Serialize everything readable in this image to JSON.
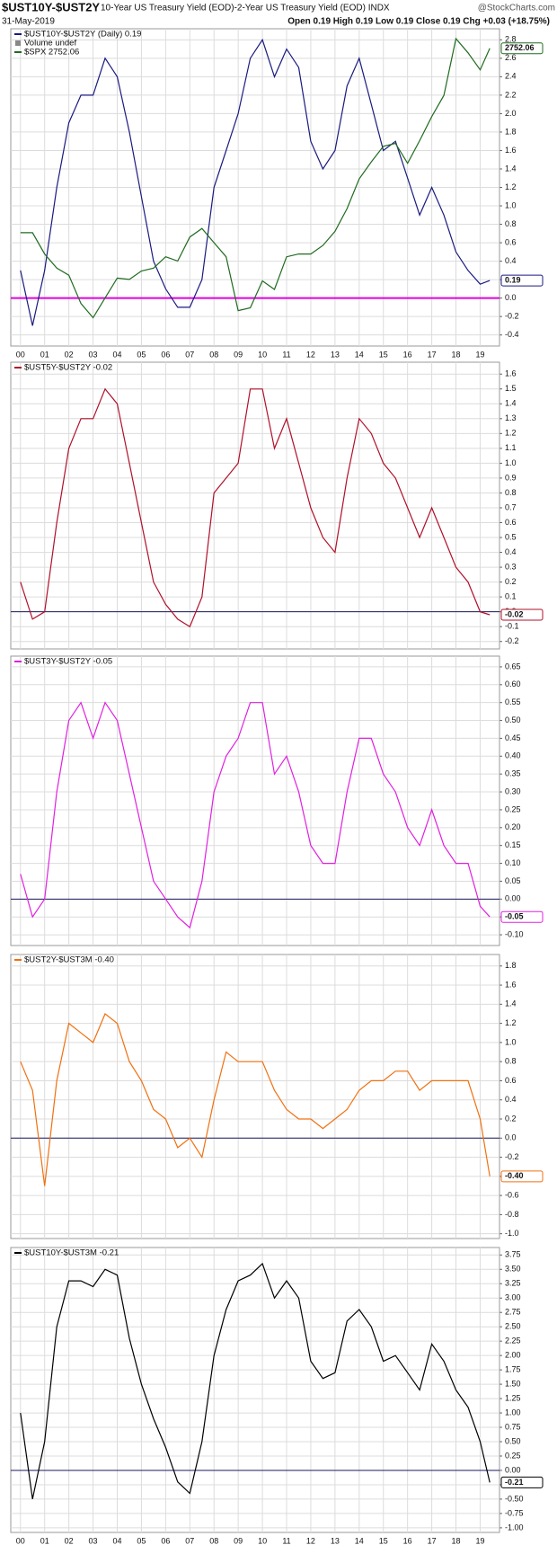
{
  "header": {
    "title": "$UST10Y-$UST2Y",
    "subtitle": "10-Year US Treasury Yield (EOD)-2-Year US Treasury Yield (EOD) INDX",
    "source": "@StockCharts.com",
    "date": "31-May-2019",
    "quote": "Open 0.19 High 0.19 Low 0.19 Close 0.19 Chg +0.03 (+18.75%)"
  },
  "chart_data": [
    {
      "type": "line",
      "legend_extra": "Volume undef",
      "reference_line": 0,
      "reference_color": "#e000e0",
      "x": [
        2000,
        2000.5,
        2001,
        2001.5,
        2002,
        2002.5,
        2003,
        2003.5,
        2004,
        2004.5,
        2005,
        2005.5,
        2006,
        2006.5,
        2007,
        2007.5,
        2008,
        2008.5,
        2009,
        2009.5,
        2010,
        2010.5,
        2011,
        2011.5,
        2012,
        2012.5,
        2013,
        2013.5,
        2014,
        2014.5,
        2015,
        2015.5,
        2016,
        2016.5,
        2017,
        2017.5,
        2018,
        2018.5,
        2019,
        2019.4
      ],
      "xlim": [
        1999.6,
        2019.8
      ],
      "xticks": [
        {
          "value": 2000,
          "label": "00"
        },
        {
          "value": 2001,
          "label": "01"
        },
        {
          "value": 2002,
          "label": "02"
        },
        {
          "value": 2003,
          "label": "03"
        },
        {
          "value": 2004,
          "label": "04"
        },
        {
          "value": 2005,
          "label": "05"
        },
        {
          "value": 2006,
          "label": "06"
        },
        {
          "value": 2007,
          "label": "07"
        },
        {
          "value": 2008,
          "label": "08"
        },
        {
          "value": 2009,
          "label": "09"
        },
        {
          "value": 2010,
          "label": "10"
        },
        {
          "value": 2011,
          "label": "11"
        },
        {
          "value": 2012,
          "label": "12"
        },
        {
          "value": 2013,
          "label": "13"
        },
        {
          "value": 2014,
          "label": "14"
        },
        {
          "value": 2015,
          "label": "15"
        },
        {
          "value": 2016,
          "label": "16"
        },
        {
          "value": 2017,
          "label": "17"
        },
        {
          "value": 2018,
          "label": "18"
        },
        {
          "value": 2019,
          "label": "19"
        }
      ],
      "ylim": [
        -0.52,
        2.92
      ],
      "yticks": [
        -0.4,
        -0.2,
        {
          "value": 0,
          "label": "0.0"
        },
        0.2,
        0.4,
        0.6,
        0.8,
        {
          "value": 1,
          "label": "1.0"
        },
        1.2,
        1.4,
        1.6,
        1.8,
        {
          "value": 2,
          "label": "2.0"
        },
        2.2,
        2.4,
        2.6,
        2.8
      ],
      "y2lim": [
        650,
        2890
      ],
      "series": [
        {
          "name": "$UST10Y-$UST2Y (Daily) 0.19",
          "color": "#1a1a80",
          "values": [
            0.3,
            -0.3,
            0.3,
            1.2,
            1.9,
            2.2,
            2.2,
            2.6,
            2.4,
            1.8,
            1.1,
            0.4,
            0.1,
            -0.1,
            -0.1,
            0.2,
            1.2,
            1.6,
            2.0,
            2.6,
            2.8,
            2.4,
            2.7,
            2.5,
            1.7,
            1.4,
            1.6,
            2.3,
            2.6,
            2.1,
            1.6,
            1.7,
            1.3,
            0.9,
            1.2,
            0.9,
            0.5,
            0.3,
            0.15,
            0.19
          ]
        },
        {
          "name": "$SPX 2752.06",
          "color": "#1f6b1f",
          "axis": "y2",
          "values": [
            1450,
            1450,
            1300,
            1200,
            1150,
            950,
            850,
            990,
            1130,
            1120,
            1180,
            1200,
            1280,
            1250,
            1420,
            1480,
            1380,
            1280,
            900,
            920,
            1110,
            1050,
            1280,
            1300,
            1300,
            1360,
            1460,
            1620,
            1830,
            1950,
            2060,
            2080,
            1940,
            2100,
            2270,
            2420,
            2820,
            2720,
            2600,
            2752.06
          ]
        }
      ]
    },
    {
      "type": "line",
      "reference_line": 0,
      "reference_color": "#1a1a60",
      "x": [
        2000,
        2000.5,
        2001,
        2001.5,
        2002,
        2002.5,
        2003,
        2003.5,
        2004,
        2004.5,
        2005,
        2005.5,
        2006,
        2006.5,
        2007,
        2007.5,
        2008,
        2008.5,
        2009,
        2009.5,
        2010,
        2010.5,
        2011,
        2011.5,
        2012,
        2012.5,
        2013,
        2013.5,
        2014,
        2014.5,
        2015,
        2015.5,
        2016,
        2016.5,
        2017,
        2017.5,
        2018,
        2018.5,
        2019,
        2019.4
      ],
      "xlim": [
        1999.6,
        2019.8
      ],
      "ylim": [
        -0.25,
        1.68
      ],
      "yticks": [
        -0.2,
        -0.1,
        {
          "value": 0,
          "label": "0.0"
        },
        0.1,
        0.2,
        0.3,
        0.4,
        0.5,
        0.6,
        0.7,
        0.8,
        0.9,
        {
          "value": 1,
          "label": "1.0"
        },
        1.1,
        1.2,
        1.3,
        1.4,
        1.5,
        1.6
      ],
      "series": [
        {
          "name": "$UST5Y-$UST2Y -0.02",
          "color": "#b0102a",
          "values": [
            0.2,
            -0.05,
            0.0,
            0.6,
            1.1,
            1.3,
            1.3,
            1.5,
            1.4,
            1.0,
            0.6,
            0.2,
            0.05,
            -0.05,
            -0.1,
            0.1,
            0.8,
            0.9,
            1.0,
            1.5,
            1.5,
            1.1,
            1.3,
            1.0,
            0.7,
            0.5,
            0.4,
            0.9,
            1.3,
            1.2,
            1.0,
            0.9,
            0.7,
            0.5,
            0.7,
            0.5,
            0.3,
            0.2,
            0.0,
            -0.02
          ]
        }
      ]
    },
    {
      "type": "line",
      "reference_line": 0,
      "reference_color": "#1a1a60",
      "x": [
        2000,
        2000.5,
        2001,
        2001.5,
        2002,
        2002.5,
        2003,
        2003.5,
        2004,
        2004.5,
        2005,
        2005.5,
        2006,
        2006.5,
        2007,
        2007.5,
        2008,
        2008.5,
        2009,
        2009.5,
        2010,
        2010.5,
        2011,
        2011.5,
        2012,
        2012.5,
        2013,
        2013.5,
        2014,
        2014.5,
        2015,
        2015.5,
        2016,
        2016.5,
        2017,
        2017.5,
        2018,
        2018.5,
        2019,
        2019.4
      ],
      "xlim": [
        1999.6,
        2019.8
      ],
      "ylim": [
        -0.13,
        0.68
      ],
      "yticks": [
        {
          "value": -0.1,
          "label": "-0.10"
        },
        -0.05,
        {
          "value": 0,
          "label": "0.00"
        },
        0.05,
        {
          "value": 0.1,
          "label": "0.10"
        },
        0.15,
        {
          "value": 0.2,
          "label": "0.20"
        },
        0.25,
        {
          "value": 0.3,
          "label": "0.30"
        },
        0.35,
        {
          "value": 0.4,
          "label": "0.40"
        },
        0.45,
        {
          "value": 0.5,
          "label": "0.50"
        },
        0.55,
        {
          "value": 0.6,
          "label": "0.60"
        },
        0.65
      ],
      "series": [
        {
          "name": "$UST3Y-$UST2Y -0.05",
          "color": "#e020e0",
          "values": [
            0.07,
            -0.05,
            0.0,
            0.3,
            0.5,
            0.55,
            0.45,
            0.55,
            0.5,
            0.35,
            0.2,
            0.05,
            0.0,
            -0.05,
            -0.08,
            0.05,
            0.3,
            0.4,
            0.45,
            0.55,
            0.55,
            0.35,
            0.4,
            0.3,
            0.15,
            0.1,
            0.1,
            0.3,
            0.45,
            0.45,
            0.35,
            0.3,
            0.2,
            0.15,
            0.25,
            0.15,
            0.1,
            0.1,
            -0.02,
            -0.05
          ]
        }
      ]
    },
    {
      "type": "line",
      "reference_line": 0,
      "reference_color": "#1a1a60",
      "x": [
        2000,
        2000.5,
        2001,
        2001.5,
        2002,
        2002.5,
        2003,
        2003.5,
        2004,
        2004.5,
        2005,
        2005.5,
        2006,
        2006.5,
        2007,
        2007.5,
        2008,
        2008.5,
        2009,
        2009.5,
        2010,
        2010.5,
        2011,
        2011.5,
        2012,
        2012.5,
        2013,
        2013.5,
        2014,
        2014.5,
        2015,
        2015.5,
        2016,
        2016.5,
        2017,
        2017.5,
        2018,
        2018.5,
        2019,
        2019.4
      ],
      "xlim": [
        1999.6,
        2019.8
      ],
      "ylim": [
        -1.05,
        1.92
      ],
      "yticks": [
        {
          "value": -1,
          "label": "-1.0"
        },
        -0.8,
        -0.6,
        -0.4,
        -0.2,
        {
          "value": 0,
          "label": "0.0"
        },
        0.2,
        0.4,
        0.6,
        0.8,
        {
          "value": 1,
          "label": "1.0"
        },
        1.2,
        1.4,
        1.6,
        1.8
      ],
      "series": [
        {
          "name": "$UST2Y-$UST3M -0.40",
          "color": "#f07010",
          "values": [
            0.8,
            0.5,
            -0.5,
            0.6,
            1.2,
            1.1,
            1.0,
            1.3,
            1.2,
            0.8,
            0.6,
            0.3,
            0.2,
            -0.1,
            0.0,
            -0.2,
            0.4,
            0.9,
            0.8,
            0.8,
            0.8,
            0.5,
            0.3,
            0.2,
            0.2,
            0.1,
            0.2,
            0.3,
            0.5,
            0.6,
            0.6,
            0.7,
            0.7,
            0.5,
            0.6,
            0.6,
            0.6,
            0.6,
            0.2,
            -0.4
          ],
          "value_labels": [
            null,
            null,
            null,
            null,
            null,
            null,
            null,
            null,
            null,
            null,
            null,
            null,
            null,
            null,
            null,
            null,
            null,
            null,
            null,
            null,
            null,
            null,
            null,
            null,
            null,
            null,
            null,
            null,
            null,
            null,
            null,
            null,
            null,
            null,
            null,
            null,
            null,
            null,
            null,
            "-0.40"
          ]
        }
      ]
    },
    {
      "type": "line",
      "reference_line": 0,
      "reference_color": "#1a1a60",
      "x": [
        2000,
        2000.5,
        2001,
        2001.5,
        2002,
        2002.5,
        2003,
        2003.5,
        2004,
        2004.5,
        2005,
        2005.5,
        2006,
        2006.5,
        2007,
        2007.5,
        2008,
        2008.5,
        2009,
        2009.5,
        2010,
        2010.5,
        2011,
        2011.5,
        2012,
        2012.5,
        2013,
        2013.5,
        2014,
        2014.5,
        2015,
        2015.5,
        2016,
        2016.5,
        2017,
        2017.5,
        2018,
        2018.5,
        2019,
        2019.4
      ],
      "xlim": [
        1999.6,
        2019.8
      ],
      "xticks": [
        {
          "value": 2000,
          "label": "00"
        },
        {
          "value": 2001,
          "label": "01"
        },
        {
          "value": 2002,
          "label": "02"
        },
        {
          "value": 2003,
          "label": "03"
        },
        {
          "value": 2004,
          "label": "04"
        },
        {
          "value": 2005,
          "label": "05"
        },
        {
          "value": 2006,
          "label": "06"
        },
        {
          "value": 2007,
          "label": "07"
        },
        {
          "value": 2008,
          "label": "08"
        },
        {
          "value": 2009,
          "label": "09"
        },
        {
          "value": 2010,
          "label": "10"
        },
        {
          "value": 2011,
          "label": "11"
        },
        {
          "value": 2012,
          "label": "12"
        },
        {
          "value": 2013,
          "label": "13"
        },
        {
          "value": 2014,
          "label": "14"
        },
        {
          "value": 2015,
          "label": "15"
        },
        {
          "value": 2016,
          "label": "16"
        },
        {
          "value": 2017,
          "label": "17"
        },
        {
          "value": 2018,
          "label": "18"
        },
        {
          "value": 2019,
          "label": "19"
        }
      ],
      "ylim": [
        -1.08,
        3.88
      ],
      "yticks": [
        {
          "value": -1,
          "label": "-1.00"
        },
        -0.75,
        {
          "value": -0.5,
          "label": "-0.50"
        },
        -0.25,
        {
          "value": 0,
          "label": "0.00"
        },
        0.25,
        {
          "value": 0.5,
          "label": "0.50"
        },
        0.75,
        {
          "value": 1,
          "label": "1.00"
        },
        1.25,
        {
          "value": 1.5,
          "label": "1.50"
        },
        1.75,
        {
          "value": 2,
          "label": "2.00"
        },
        2.25,
        {
          "value": 2.5,
          "label": "2.50"
        },
        2.75,
        {
          "value": 3,
          "label": "3.00"
        },
        3.25,
        {
          "value": 3.5,
          "label": "3.50"
        },
        3.75
      ],
      "series": [
        {
          "name": "$UST10Y-$UST3M -0.21",
          "color": "#000000",
          "values": [
            1.0,
            -0.5,
            0.5,
            2.5,
            3.3,
            3.3,
            3.2,
            3.5,
            3.4,
            2.3,
            1.5,
            0.9,
            0.4,
            -0.2,
            -0.4,
            0.5,
            2.0,
            2.8,
            3.3,
            3.4,
            3.6,
            3.0,
            3.3,
            3.0,
            1.9,
            1.6,
            1.7,
            2.6,
            2.8,
            2.5,
            1.9,
            2.0,
            1.7,
            1.4,
            2.2,
            1.9,
            1.4,
            1.1,
            0.5,
            -0.21
          ]
        }
      ]
    }
  ]
}
